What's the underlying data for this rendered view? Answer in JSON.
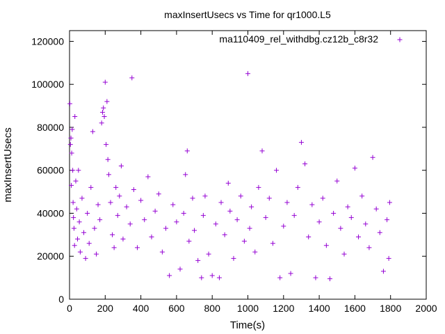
{
  "chart_data": {
    "type": "scatter",
    "title": "maxInsertUsecs vs Time for qr1000.L5",
    "xlabel": "Time(s)",
    "ylabel": "maxInsertUsecs",
    "xlim": [
      0,
      2000
    ],
    "ylim": [
      0,
      125000
    ],
    "x_ticks": [
      "0",
      "200",
      "400",
      "600",
      "800",
      "1000",
      "1200",
      "1400",
      "1600",
      "1800",
      "2000"
    ],
    "y_ticks": [
      "0",
      "20000",
      "40000",
      "60000",
      "80000",
      "100000",
      "120000"
    ],
    "grid": false,
    "legend_position": "top-right",
    "marker": "plus",
    "series": [
      {
        "name": "ma110409_rel_withdbg.cz12b_c8r32",
        "color": "#9400d3",
        "points": [
          [
            2,
            91000
          ],
          [
            5,
            72000
          ],
          [
            8,
            75000
          ],
          [
            10,
            53000
          ],
          [
            12,
            68000
          ],
          [
            15,
            79000
          ],
          [
            18,
            60000
          ],
          [
            20,
            45000
          ],
          [
            22,
            38000
          ],
          [
            25,
            33000
          ],
          [
            28,
            25000
          ],
          [
            30,
            85000
          ],
          [
            35,
            55000
          ],
          [
            40,
            42000
          ],
          [
            45,
            28000
          ],
          [
            50,
            60000
          ],
          [
            55,
            36000
          ],
          [
            60,
            22000
          ],
          [
            70,
            47000
          ],
          [
            80,
            31000
          ],
          [
            90,
            19000
          ],
          [
            100,
            40000
          ],
          [
            110,
            26000
          ],
          [
            120,
            52000
          ],
          [
            130,
            78000
          ],
          [
            140,
            33000
          ],
          [
            150,
            21000
          ],
          [
            160,
            44000
          ],
          [
            170,
            37000
          ],
          [
            180,
            82000
          ],
          [
            185,
            87000
          ],
          [
            190,
            89000
          ],
          [
            195,
            85000
          ],
          [
            200,
            101000
          ],
          [
            205,
            72000
          ],
          [
            210,
            92000
          ],
          [
            215,
            65000
          ],
          [
            220,
            58000
          ],
          [
            230,
            45000
          ],
          [
            240,
            30000
          ],
          [
            250,
            24000
          ],
          [
            260,
            52000
          ],
          [
            270,
            39000
          ],
          [
            280,
            48000
          ],
          [
            290,
            62000
          ],
          [
            300,
            28000
          ],
          [
            320,
            43000
          ],
          [
            340,
            35000
          ],
          [
            350,
            103000
          ],
          [
            360,
            51000
          ],
          [
            380,
            24000
          ],
          [
            400,
            46000
          ],
          [
            420,
            37000
          ],
          [
            440,
            57000
          ],
          [
            460,
            29000
          ],
          [
            480,
            41000
          ],
          [
            500,
            49000
          ],
          [
            520,
            22000
          ],
          [
            540,
            33000
          ],
          [
            560,
            11000
          ],
          [
            580,
            44000
          ],
          [
            600,
            36000
          ],
          [
            620,
            14000
          ],
          [
            640,
            40000
          ],
          [
            650,
            58000
          ],
          [
            660,
            69000
          ],
          [
            670,
            27000
          ],
          [
            690,
            47000
          ],
          [
            700,
            32000
          ],
          [
            720,
            18000
          ],
          [
            740,
            10000
          ],
          [
            750,
            39000
          ],
          [
            760,
            48000
          ],
          [
            780,
            21000
          ],
          [
            800,
            11000
          ],
          [
            820,
            35000
          ],
          [
            840,
            10000
          ],
          [
            850,
            45000
          ],
          [
            870,
            30000
          ],
          [
            890,
            54000
          ],
          [
            900,
            41000
          ],
          [
            920,
            19000
          ],
          [
            940,
            37000
          ],
          [
            960,
            48000
          ],
          [
            980,
            27000
          ],
          [
            1000,
            105000
          ],
          [
            1010,
            33000
          ],
          [
            1020,
            43000
          ],
          [
            1040,
            22000
          ],
          [
            1060,
            52000
          ],
          [
            1080,
            69000
          ],
          [
            1100,
            38000
          ],
          [
            1120,
            47000
          ],
          [
            1140,
            26000
          ],
          [
            1160,
            60000
          ],
          [
            1180,
            10000
          ],
          [
            1200,
            34000
          ],
          [
            1220,
            45000
          ],
          [
            1240,
            12000
          ],
          [
            1260,
            39000
          ],
          [
            1280,
            52000
          ],
          [
            1300,
            73000
          ],
          [
            1320,
            63000
          ],
          [
            1340,
            29000
          ],
          [
            1360,
            44000
          ],
          [
            1380,
            10000
          ],
          [
            1400,
            36000
          ],
          [
            1420,
            47000
          ],
          [
            1440,
            25000
          ],
          [
            1460,
            9500
          ],
          [
            1480,
            40000
          ],
          [
            1500,
            55000
          ],
          [
            1520,
            33000
          ],
          [
            1540,
            21000
          ],
          [
            1560,
            43000
          ],
          [
            1580,
            38000
          ],
          [
            1600,
            61000
          ],
          [
            1620,
            29000
          ],
          [
            1640,
            48000
          ],
          [
            1660,
            35000
          ],
          [
            1680,
            24000
          ],
          [
            1700,
            66000
          ],
          [
            1720,
            42000
          ],
          [
            1740,
            31000
          ],
          [
            1760,
            13000
          ],
          [
            1780,
            37000
          ],
          [
            1790,
            19000
          ],
          [
            1795,
            45000
          ]
        ]
      }
    ]
  }
}
